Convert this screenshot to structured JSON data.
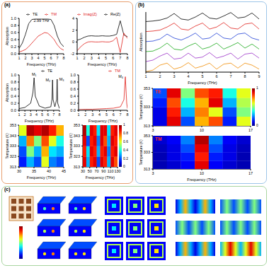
{
  "panel_labels": [
    "(a)",
    "(b)",
    "(c)"
  ],
  "chart_data": [
    {
      "type": "line",
      "x_label": "Frequency (THz)",
      "y_label": "Absorption",
      "x": [
        1,
        1.5,
        2,
        2.5,
        3,
        3.5,
        4,
        4.5,
        5,
        5.5,
        6,
        6.5,
        7,
        7.5,
        8
      ],
      "series": [
        {
          "name": "TE",
          "color": "#000000",
          "values": [
            0.15,
            0.3,
            0.55,
            0.85,
            0.97,
            0.98,
            0.98,
            0.98,
            0.98,
            0.98,
            0.97,
            0.8,
            0.5,
            0.3,
            0.2
          ]
        },
        {
          "name": "TM",
          "color": "#e0201b",
          "values": [
            0.05,
            0.08,
            0.12,
            0.2,
            0.3,
            0.4,
            0.5,
            0.55,
            0.6,
            0.58,
            0.5,
            0.4,
            0.25,
            0.15,
            0.1
          ]
        }
      ],
      "xlim": [
        1,
        8
      ],
      "xticks": [
        1,
        2,
        3,
        4,
        5,
        6,
        7,
        8
      ],
      "ylim": [
        0,
        1
      ],
      "yticks": [
        {
          "value": 0,
          "label": "0.0"
        },
        0.2,
        0.4,
        0.6,
        0.8,
        {
          "value": 1,
          "label": "1.0"
        }
      ],
      "legend": "top",
      "annotations": [
        {
          "text": "2.99 THz",
          "x": 4.5,
          "y": 0.85
        }
      ]
    },
    {
      "type": "line",
      "x_label": "Frequency (THz)",
      "x": [
        1,
        1.5,
        2,
        2.5,
        3,
        3.5,
        4,
        4.5,
        5,
        5.5,
        6,
        6.5,
        7,
        7.5,
        8
      ],
      "series": [
        {
          "name": "Re(Z)",
          "color": "#000000",
          "values": [
            0.3,
            0.5,
            0.8,
            1.0,
            1.05,
            1.0,
            1.0,
            1.05,
            1.0,
            1.0,
            1.1,
            1.3,
            3.6,
            1.2,
            0.9
          ]
        },
        {
          "name": "Imag(Z)",
          "color": "#e0201b",
          "values": [
            -1.5,
            -0.8,
            -0.3,
            0,
            0.05,
            0,
            0,
            0.05,
            0,
            0,
            0.2,
            0.8,
            -1.8,
            1.5,
            0.6
          ]
        }
      ],
      "xlim": [
        1,
        8
      ],
      "xticks": [
        1,
        2,
        3,
        4,
        5,
        6,
        7,
        8
      ],
      "ylim": [
        -2,
        4
      ],
      "yticks": [
        -2,
        0,
        2,
        4
      ],
      "legend": "top"
    },
    {
      "type": "line",
      "x_label": "Frequency (THz)",
      "y_label": "Absorption",
      "x": [
        1,
        2,
        3,
        3.4,
        3.6,
        3.8,
        4.5,
        5.5,
        6.5,
        6.7,
        6.8,
        6.9,
        7.2,
        7.5,
        7.6,
        7.7,
        8
      ],
      "series": [
        {
          "name": "TE",
          "color": "#000000",
          "values": [
            0.05,
            0.08,
            0.2,
            0.5,
            0.92,
            0.4,
            0.12,
            0.06,
            0.1,
            0.3,
            0.86,
            0.3,
            0.1,
            0.3,
            0.88,
            0.2,
            0.05
          ]
        }
      ],
      "xlim": [
        1,
        8
      ],
      "xticks": [
        1,
        2,
        3,
        4,
        5,
        6,
        7,
        8
      ],
      "ylim": [
        0,
        1
      ],
      "yticks": [
        {
          "value": 0,
          "label": "0.0"
        },
        0.2,
        0.4,
        0.6,
        0.8,
        {
          "value": 1,
          "label": "1.0"
        }
      ],
      "legend": "top",
      "annotations": [
        {
          "text": "M₁",
          "x": 3.6,
          "y": 0.92
        },
        {
          "text": "M₂",
          "x": 6.8,
          "y": 0.86
        },
        {
          "text": "M₃",
          "x": 7.6,
          "y": 0.88
        }
      ]
    },
    {
      "type": "line",
      "x_label": "Frequency (THz)",
      "x": [
        1,
        2,
        3,
        4,
        5,
        6,
        7,
        7.5,
        7.7,
        7.9,
        8
      ],
      "series": [
        {
          "name": "TM",
          "color": "#e0201b",
          "values": [
            0.02,
            0.03,
            0.03,
            0.04,
            0.05,
            0.06,
            0.1,
            0.3,
            0.95,
            0.2,
            0.05
          ]
        }
      ],
      "xlim": [
        1,
        8
      ],
      "xticks": [
        1,
        2,
        3,
        4,
        5,
        6,
        7,
        8
      ],
      "ylim": [
        0,
        1
      ],
      "yticks": [
        {
          "value": 0,
          "label": "0.0"
        },
        0.2,
        0.4,
        0.6,
        0.8,
        {
          "value": 1,
          "label": "1.0"
        }
      ],
      "legend": "top",
      "annotations": [
        {
          "text": "M₄",
          "x": 7.7,
          "y": 0.95
        }
      ]
    },
    {
      "type": "heatmap",
      "x_label": "Frequency (THz)",
      "y_label": "Temperature (K)",
      "x": [
        31.25,
        33.75,
        36.25,
        38.75,
        41.25,
        43.75
      ],
      "y": [
        318,
        328,
        338,
        348
      ],
      "cells": [
        [
          0.15,
          0.3,
          0.2,
          0.6,
          0.25,
          0.2
        ],
        [
          0.2,
          0.5,
          0.3,
          0.7,
          0.35,
          0.3
        ],
        [
          0.3,
          0.75,
          0.5,
          0.8,
          0.6,
          0.4
        ],
        [
          0.6,
          0.95,
          0.9,
          0.95,
          0.85,
          0.7
        ]
      ],
      "xlim": [
        30,
        45
      ],
      "xticks": [
        30,
        35,
        40,
        45
      ],
      "ylim": [
        313,
        353
      ],
      "yticks": [
        313,
        323,
        333,
        343,
        353
      ]
    },
    {
      "type": "heatmap",
      "x_label": "Frequency (THz)",
      "y_label": "Temperature (K)",
      "x": [
        35,
        45,
        55,
        65,
        75,
        85,
        95,
        105,
        115,
        125
      ],
      "y": [
        318,
        328,
        338,
        348
      ],
      "cells": [
        [
          0.9,
          0.3,
          0.85,
          0.9,
          0.2,
          0.9,
          0.85,
          0.3,
          0.9,
          0.8
        ],
        [
          0.85,
          0.35,
          0.9,
          0.85,
          0.3,
          0.85,
          0.9,
          0.25,
          0.85,
          0.9
        ],
        [
          0.9,
          0.2,
          0.85,
          0.9,
          0.25,
          0.9,
          0.8,
          0.3,
          0.9,
          0.85
        ],
        [
          0.95,
          0.4,
          0.9,
          0.85,
          0.35,
          0.9,
          0.9,
          0.35,
          0.85,
          0.9
        ]
      ],
      "xlim": [
        30,
        130
      ],
      "xticks": [
        30,
        50,
        70,
        90,
        110,
        130
      ],
      "ylim": [
        313,
        353
      ],
      "yticks": [
        313,
        323,
        333,
        343,
        353
      ],
      "colorbar": {
        "range": [
          0,
          1
        ],
        "ticks": [
          0,
          0.2,
          0.4,
          0.6,
          0.8,
          1
        ]
      }
    },
    {
      "type": "line",
      "x_label": "Frequency (THz)",
      "y_label": "Absorption",
      "x": [
        1,
        1.5,
        2,
        2.5,
        3,
        3.5,
        4,
        4.5,
        5,
        5.5,
        6,
        6.5,
        7,
        7.5,
        8,
        8.5,
        9
      ],
      "series": [
        {
          "color": "#000000",
          "values": [
            5.05,
            5.1,
            5.2,
            5.4,
            5.85,
            5.3,
            5.2,
            5.5,
            5.9,
            5.4,
            5.3,
            5.6,
            5.95,
            5.4,
            5.5,
            5.9,
            5.3
          ]
        },
        {
          "color": "#e0201b",
          "values": [
            4.05,
            4.1,
            4.2,
            4.5,
            4.9,
            4.3,
            4.2,
            4.6,
            4.9,
            4.3,
            4.5,
            4.95,
            4.4,
            4.3,
            4.8,
            4.9,
            4.3
          ]
        },
        {
          "color": "#1f3fd6",
          "values": [
            3.05,
            3.1,
            3.3,
            3.8,
            3.4,
            3.2,
            3.5,
            3.9,
            3.3,
            3.4,
            3.9,
            3.4,
            3.3,
            3.8,
            3.9,
            3.4,
            3.2
          ]
        },
        {
          "color": "#18a818",
          "values": [
            2.05,
            2.1,
            2.4,
            2.9,
            2.3,
            2.2,
            2.6,
            2.9,
            2.3,
            2.5,
            2.9,
            2.3,
            2.6,
            2.95,
            2.4,
            2.8,
            2.3
          ]
        },
        {
          "color": "#9b30c8",
          "values": [
            1.05,
            1.2,
            1.6,
            1.9,
            1.3,
            1.4,
            1.9,
            1.4,
            1.5,
            1.95,
            1.4,
            1.6,
            1.9,
            1.3,
            1.8,
            1.9,
            1.4
          ]
        },
        {
          "color": "#f08a00",
          "values": [
            0.05,
            0.2,
            0.7,
            0.9,
            0.3,
            0.5,
            0.95,
            0.4,
            0.6,
            0.9,
            0.3,
            0.8,
            0.9,
            0.4,
            0.9,
            0.7,
            0.3
          ]
        }
      ],
      "xlim": [
        1,
        9
      ],
      "xticks": [
        1,
        2,
        3,
        4,
        5,
        6,
        7,
        8,
        9
      ],
      "ylim": [
        0,
        6
      ],
      "tick_labels": "x"
    },
    {
      "type": "heatmap",
      "label": "TE",
      "y_label": "Temperature (K)",
      "x": [
        4,
        6,
        8,
        10,
        12,
        14,
        16
      ],
      "y": [
        318,
        328,
        338,
        348
      ],
      "cells": [
        [
          0.1,
          0.9,
          0.2,
          0.7,
          0.8,
          0.15,
          0.6
        ],
        [
          0.1,
          0.85,
          0.3,
          0.75,
          0.6,
          0.2,
          0.5
        ],
        [
          0.15,
          0.8,
          0.4,
          0.7,
          0.9,
          0.3,
          0.55
        ],
        [
          0.2,
          0.9,
          0.5,
          0.8,
          0.85,
          0.4,
          0.6
        ]
      ],
      "xlim": [
        3,
        17
      ],
      "xticks": [
        3,
        10,
        17
      ],
      "ylim": [
        313,
        353
      ],
      "yticks": [
        313,
        333,
        353
      ],
      "colorbar": {
        "range": [
          0,
          1
        ],
        "ticks": [
          0,
          1
        ]
      }
    },
    {
      "type": "heatmap",
      "label": "TM",
      "x_label": "Frequency (THz)",
      "y_label": "Temperature (K)",
      "x": [
        4,
        6,
        8,
        10,
        12,
        14,
        16
      ],
      "y": [
        318,
        328,
        338,
        348
      ],
      "cells": [
        [
          0.05,
          0.08,
          0.12,
          0.9,
          0.12,
          0.08,
          0.05
        ],
        [
          0.05,
          0.1,
          0.15,
          0.85,
          0.15,
          0.1,
          0.05
        ],
        [
          0.06,
          0.1,
          0.2,
          0.9,
          0.2,
          0.1,
          0.06
        ],
        [
          0.08,
          0.12,
          0.25,
          0.95,
          0.25,
          0.12,
          0.08
        ]
      ],
      "xlim": [
        3,
        17
      ],
      "xticks": [
        3,
        10,
        17
      ],
      "ylim": [
        313,
        353
      ],
      "yticks": [
        313,
        333,
        353
      ]
    }
  ]
}
